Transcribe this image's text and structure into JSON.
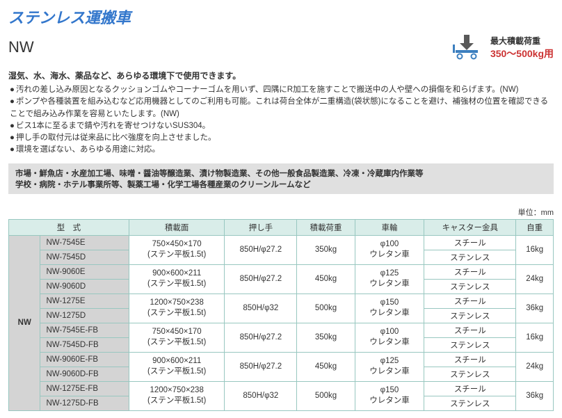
{
  "title": "ステンレス運搬車",
  "model_name": "NW",
  "load": {
    "label": "最大積載荷重",
    "range": "350〜500kg用"
  },
  "subheading": "湿気、水、海水、薬品など、あらゆる環境下で使用できます。",
  "bullets": [
    "汚れの差し込み原因となるクッションゴムやコーナーゴムを用いず、四隅にR加工を施すことで搬送中の人や壁への損傷を和らげます。(NW)",
    "ポンプや各種装置を組み込むなど応用機器としてのご利用も可能。これは荷台全体が二重構造(袋状態)になることを避け、補強材の位置を確認できることで組み込み作業を容易といたします。(NW)",
    "ビス1本に至るまで錆や汚れを寄せつけないSUS304。",
    "押し手の取付元は従来品に比べ強度を向上させました。",
    "環境を選ばない、あらゆる用途に対応。"
  ],
  "applications_line1": "市場・鮮魚店・水産加工場、味噌・醤油等醸造業、漬け物製造業、その他一般食品製造業、冷凍・冷蔵庫内作業等",
  "applications_line2": "学校・病院・ホテル事業所等、製薬工場・化学工場各種産業のクリーンルームなど",
  "unit_label": "単位：mm",
  "colors": {
    "title": "#3377cc",
    "accent_red": "#cc3333",
    "th_bg": "#d9ede9",
    "border": "#98c7c0",
    "gray_bg": "#d4d4d4",
    "apps_bg": "#e0e0e0",
    "cart_arrow": "#595959",
    "cart_body": "#3c7fbf"
  },
  "table": {
    "headers": {
      "model": "型　式",
      "deck": "積載面",
      "handle": "押し手",
      "capacity": "積載荷重",
      "wheel": "車輪",
      "caster": "キャスター金具",
      "weight": "自重"
    },
    "series_label": "NW",
    "groups": [
      {
        "models": [
          "NW-7545E",
          "NW-7545D"
        ],
        "deck_line1": "750×450×170",
        "deck_line2": "(ステン平板1.5t)",
        "handle": "850H/φ27.2",
        "capacity": "350kg",
        "wheel_line1": "φ100",
        "wheel_line2": "ウレタン車",
        "casters": [
          "スチール",
          "ステンレス"
        ],
        "weight": "16kg"
      },
      {
        "models": [
          "NW-9060E",
          "NW-9060D"
        ],
        "deck_line1": "900×600×211",
        "deck_line2": "(ステン平板1.5t)",
        "handle": "850H/φ27.2",
        "capacity": "450kg",
        "wheel_line1": "φ125",
        "wheel_line2": "ウレタン車",
        "casters": [
          "スチール",
          "ステンレス"
        ],
        "weight": "24kg"
      },
      {
        "models": [
          "NW-1275E",
          "NW-1275D"
        ],
        "deck_line1": "1200×750×238",
        "deck_line2": "(ステン平板1.5t)",
        "handle": "850H/φ32",
        "capacity": "500kg",
        "wheel_line1": "φ150",
        "wheel_line2": "ウレタン車",
        "casters": [
          "スチール",
          "ステンレス"
        ],
        "weight": "36kg"
      },
      {
        "models": [
          "NW-7545E-FB",
          "NW-7545D-FB"
        ],
        "deck_line1": "750×450×170",
        "deck_line2": "(ステン平板1.5t)",
        "handle": "850H/φ27.2",
        "capacity": "350kg",
        "wheel_line1": "φ100",
        "wheel_line2": "ウレタン車",
        "casters": [
          "スチール",
          "ステンレス"
        ],
        "weight": "16kg"
      },
      {
        "models": [
          "NW-9060E-FB",
          "NW-9060D-FB"
        ],
        "deck_line1": "900×600×211",
        "deck_line2": "(ステン平板1.5t)",
        "handle": "850H/φ27.2",
        "capacity": "450kg",
        "wheel_line1": "φ125",
        "wheel_line2": "ウレタン車",
        "casters": [
          "スチール",
          "ステンレス"
        ],
        "weight": "24kg"
      },
      {
        "models": [
          "NW-1275E-FB",
          "NW-1275D-FB"
        ],
        "deck_line1": "1200×750×238",
        "deck_line2": "(ステン平板1.5t)",
        "handle": "850H/φ32",
        "capacity": "500kg",
        "wheel_line1": "φ150",
        "wheel_line2": "ウレタン車",
        "casters": [
          "スチール",
          "ステンレス"
        ],
        "weight": "36kg"
      }
    ]
  }
}
